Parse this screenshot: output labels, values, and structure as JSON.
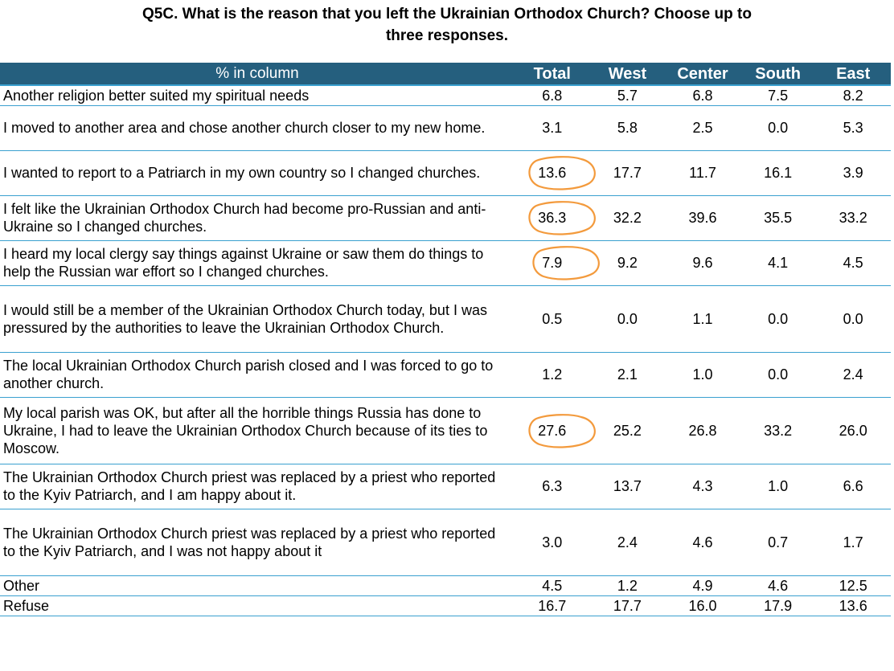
{
  "title": {
    "line1": "Q5C. What is the reason that you left the Ukrainian Orthodox Church? Choose up to",
    "line2": "three responses."
  },
  "annotation_color": "#f39a3c",
  "header_color": "#255f7e",
  "rule_color": "#3aa0cf",
  "chart_data": {
    "type": "table",
    "title": "Q5C. What is the reason that you left the Ukrainian Orthodox Church? Choose up to three responses.",
    "header_label": "% in column",
    "columns": [
      "Total",
      "West",
      "Center",
      "South",
      "East"
    ],
    "rows": [
      {
        "label": "Another religion better suited my spiritual needs",
        "values": [
          "6.8",
          "5.7",
          "6.8",
          "7.5",
          "8.2"
        ],
        "circled_total": false
      },
      {
        "label": "I moved to another area and chose another church closer to my new home.",
        "values": [
          "3.1",
          "5.8",
          "2.5",
          "0.0",
          "5.3"
        ],
        "circled_total": false
      },
      {
        "label": "I wanted to report to a Patriarch in my own country so I changed churches.",
        "values": [
          "13.6",
          "17.7",
          "11.7",
          "16.1",
          "3.9"
        ],
        "circled_total": true
      },
      {
        "label": "I felt like the Ukrainian Orthodox Church had become pro-Russian and anti-Ukraine so I changed churches.",
        "values": [
          "36.3",
          "32.2",
          "39.6",
          "35.5",
          "33.2"
        ],
        "circled_total": true
      },
      {
        "label": "I heard my local clergy say things against Ukraine or saw them do things to help the Russian war effort so I changed churches.",
        "values": [
          "7.9",
          "9.2",
          "9.6",
          "4.1",
          "4.5"
        ],
        "circled_total": true
      },
      {
        "label": "I would still be a member of the Ukrainian Orthodox Church today, but I was pressured by the authorities to leave the Ukrainian Orthodox Church.",
        "values": [
          "0.5",
          "0.0",
          "1.1",
          "0.0",
          "0.0"
        ],
        "circled_total": false
      },
      {
        "label": "The local Ukrainian Orthodox Church parish closed and I was forced to go to another church.",
        "values": [
          "1.2",
          "2.1",
          "1.0",
          "0.0",
          "2.4"
        ],
        "circled_total": false
      },
      {
        "label": "My local parish was OK, but after all the horrible things Russia has done to Ukraine, I had to leave the Ukrainian Orthodox Church because of its ties to Moscow.",
        "values": [
          "27.6",
          "25.2",
          "26.8",
          "33.2",
          "26.0"
        ],
        "circled_total": true
      },
      {
        "label": "The Ukrainian Orthodox Church priest was replaced by a priest who reported to the Kyiv Patriarch, and I am happy about it.",
        "values": [
          "6.3",
          "13.7",
          "4.3",
          "1.0",
          "6.6"
        ],
        "circled_total": false
      },
      {
        "label": "The Ukrainian Orthodox Church priest was replaced by a priest who reported to the Kyiv Patriarch, and I was not happy about it",
        "values": [
          "3.0",
          "2.4",
          "4.6",
          "0.7",
          "1.7"
        ],
        "circled_total": false
      },
      {
        "label": "Other",
        "values": [
          "4.5",
          "1.2",
          "4.9",
          "4.6",
          "12.5"
        ],
        "circled_total": false
      },
      {
        "label": "Refuse",
        "values": [
          "16.7",
          "17.7",
          "16.0",
          "17.9",
          "13.6"
        ],
        "circled_total": false
      }
    ]
  }
}
